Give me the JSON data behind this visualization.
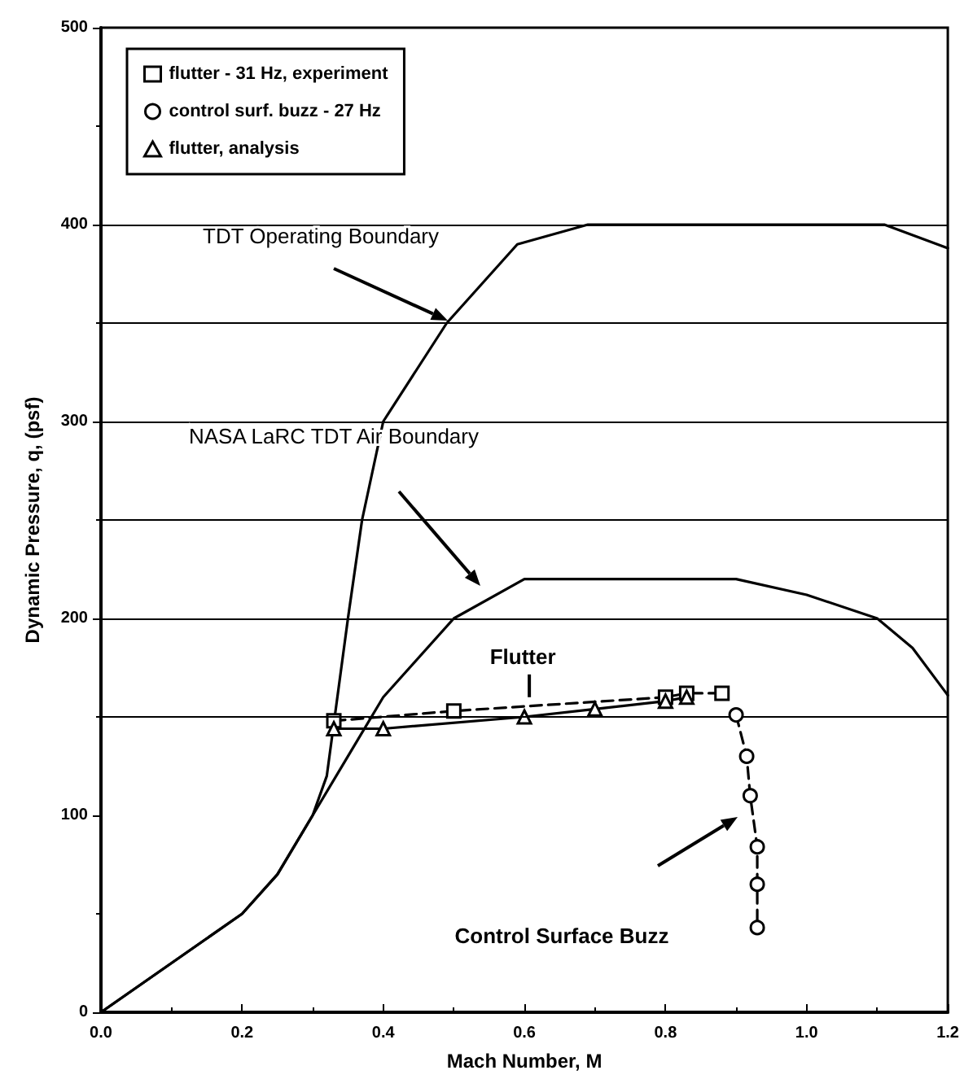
{
  "chart_data": {
    "type": "line",
    "xlabel": "Mach Number, M",
    "ylabel": "Dynamic Pressure, q, (psf)",
    "xlim": [
      0,
      1.2
    ],
    "xticks": [
      {
        "value": 0,
        "label": "0.0"
      },
      {
        "value": 0.2,
        "label": "0.2"
      },
      {
        "value": 0.4,
        "label": "0.4"
      },
      {
        "value": 0.6,
        "label": "0.6"
      },
      {
        "value": 0.8,
        "label": "0.8"
      },
      {
        "value": 1,
        "label": "1.0"
      },
      {
        "value": 1.2,
        "label": "1.2"
      }
    ],
    "ylim": [
      0,
      500
    ],
    "yticks": [
      0,
      100,
      200,
      300,
      400,
      500
    ],
    "grid": false,
    "legend": "top left",
    "series": [
      {
        "color": "#000000",
        "marker": "none",
        "line_style": "solid",
        "x": [
          0,
          0.2,
          0.25,
          0.3,
          0.32,
          0.35,
          0.37,
          0.4,
          0.49,
          0.59,
          0.69,
          1.11,
          1.2
        ],
        "values": [
          0,
          50,
          70,
          100,
          120,
          200,
          250,
          300,
          350,
          390,
          400,
          400,
          388
        ]
      },
      {
        "color": "#000000",
        "marker": "none",
        "line_style": "solid",
        "x": [
          0,
          0.2,
          0.25,
          0.3,
          0.35,
          0.4,
          0.5,
          0.6,
          0.9,
          1.0,
          1.1,
          1.15,
          1.2
        ],
        "values": [
          0,
          50,
          70,
          100,
          130,
          160,
          200,
          220,
          220,
          212,
          200,
          185,
          161
        ]
      },
      {
        "name": "flutter - 31 Hz, experiment",
        "color": "#000000",
        "marker": "square",
        "line_style": "dashed",
        "x": [
          0.33,
          0.5,
          0.8,
          0.83,
          0.88
        ],
        "values": [
          148,
          153,
          160,
          162,
          162
        ]
      },
      {
        "name": "control surf. buzz - 27 Hz",
        "color": "#000000",
        "marker": "circle",
        "line_style": "dashed",
        "x": [
          0.9,
          0.915,
          0.92,
          0.93,
          0.93,
          0.93
        ],
        "values": [
          151,
          130,
          110,
          84,
          65,
          43
        ]
      },
      {
        "name": "flutter, analysis",
        "color": "#000000",
        "marker": "triangle",
        "line_style": "solid",
        "x": [
          0.33,
          0.4,
          0.6,
          0.7,
          0.8,
          0.83
        ],
        "values": [
          144,
          144,
          150,
          154,
          158,
          160
        ]
      }
    ],
    "ref_lines": [
      {
        "axis": "y",
        "value": 150,
        "color": "#000000"
      },
      {
        "axis": "y",
        "value": 200,
        "color": "#000000"
      },
      {
        "axis": "y",
        "value": 250,
        "color": "#000000"
      },
      {
        "axis": "y",
        "value": 300,
        "color": "#000000"
      },
      {
        "axis": "y",
        "value": 350,
        "color": "#000000"
      },
      {
        "axis": "y",
        "value": 400,
        "color": "#000000"
      }
    ],
    "annotations": [
      "TDT Operating Boundary",
      "NASA LaRC TDT Air Boundary",
      {
        "text": "Flutter",
        "x": 0.607,
        "y": 160
      },
      "Control Surface Buzz"
    ]
  }
}
